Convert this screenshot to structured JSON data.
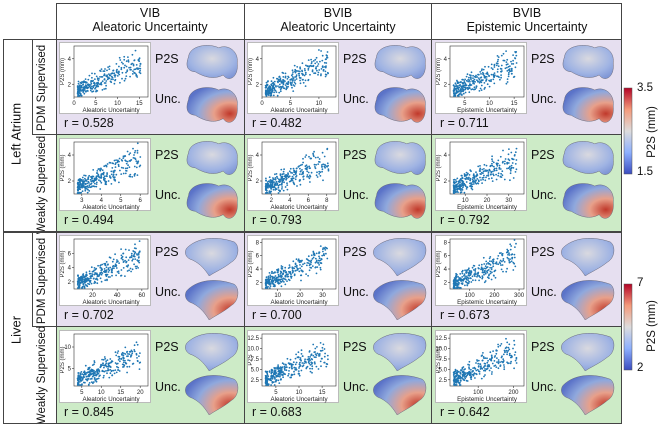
{
  "headers": [
    {
      "line1": "VIB",
      "line2": "Aleatoric Uncertainty"
    },
    {
      "line1": "BVIB",
      "line2": "Aleatoric Uncertainty"
    },
    {
      "line1": "BVIB",
      "line2": "Epistemic Uncertainty"
    }
  ],
  "groups": [
    "Left Atrium",
    "Liver"
  ],
  "rows": [
    "PDM Supervised",
    "Weakly Supervised",
    "PDM Supervised",
    "Weakly Supervised"
  ],
  "shape_labels": {
    "top": "P2S",
    "bottom": "Unc."
  },
  "colorbars": [
    {
      "max": "3.5",
      "min": "1.5",
      "unit": "P2S (mm)"
    },
    {
      "max": "7",
      "min": "2",
      "unit": "P2S (mm)"
    }
  ],
  "colors": {
    "purple_bg": "#e6dff0",
    "green_bg": "#cdebc7",
    "point": "#1f77b4"
  },
  "chart_data": [
    {
      "type": "scatter",
      "row": 0,
      "col": 0,
      "xlabel": "Aleatoric Uncertainty",
      "ylabel": "P2S (mm)",
      "xticks": [
        "0",
        "5",
        "10",
        "15"
      ],
      "yticks": [
        "2",
        "4"
      ],
      "xlim": [
        0,
        17
      ],
      "ylim": [
        1,
        5
      ],
      "r": "r = 0.528"
    },
    {
      "type": "scatter",
      "row": 0,
      "col": 1,
      "xlabel": "Aleatoric Uncertainty",
      "ylabel": "P2S (mm)",
      "xticks": [
        "0",
        "5",
        "10"
      ],
      "yticks": [
        "2",
        "4"
      ],
      "xlim": [
        0,
        13
      ],
      "ylim": [
        1,
        5
      ],
      "r": "r = 0.482"
    },
    {
      "type": "scatter",
      "row": 0,
      "col": 2,
      "xlabel": "Epistemic Uncertainty",
      "ylabel": "P2S (mm)",
      "xticks": [
        "5",
        "10",
        "15"
      ],
      "yticks": [
        "2",
        "4"
      ],
      "xlim": [
        2,
        17
      ],
      "ylim": [
        1,
        5
      ],
      "r": "r = 0.711"
    },
    {
      "type": "scatter",
      "row": 1,
      "col": 0,
      "xlabel": "Aleatoric Uncertainty",
      "ylabel": "P2S (mm)",
      "xticks": [
        "3",
        "4",
        "5",
        "6"
      ],
      "yticks": [
        "2",
        "4"
      ],
      "xlim": [
        2.6,
        6.4
      ],
      "ylim": [
        1,
        5
      ],
      "r": "r = 0.494"
    },
    {
      "type": "scatter",
      "row": 1,
      "col": 1,
      "xlabel": "Aleatoric Uncertainty",
      "ylabel": "P2S (mm)",
      "xticks": [
        "2",
        "4",
        "6",
        "8"
      ],
      "yticks": [
        "2",
        "4"
      ],
      "xlim": [
        1,
        9
      ],
      "ylim": [
        1,
        5
      ],
      "r": "r = 0.793"
    },
    {
      "type": "scatter",
      "row": 1,
      "col": 2,
      "xlabel": "Epistemic Uncertainty",
      "ylabel": "P2S (mm)",
      "xticks": [
        "10",
        "20",
        "30"
      ],
      "yticks": [
        "2",
        "4"
      ],
      "xlim": [
        3,
        37
      ],
      "ylim": [
        1,
        5
      ],
      "r": "r = 0.792"
    },
    {
      "type": "scatter",
      "row": 2,
      "col": 0,
      "xlabel": "Aleatoric Uncertainty",
      "ylabel": "P2S (mm)",
      "xticks": [
        "20",
        "40",
        "60"
      ],
      "yticks": [
        "2",
        "4",
        "6"
      ],
      "xlim": [
        5,
        65
      ],
      "ylim": [
        1,
        8
      ],
      "r": "r = 0.702"
    },
    {
      "type": "scatter",
      "row": 2,
      "col": 1,
      "xlabel": "Aleatoric Uncertainty",
      "ylabel": "P2S (mm)",
      "xticks": [
        "10",
        "20",
        "30"
      ],
      "yticks": [
        "2",
        "4",
        "6",
        "8"
      ],
      "xlim": [
        3,
        36
      ],
      "ylim": [
        1,
        8.5
      ],
      "r": "r = 0.700"
    },
    {
      "type": "scatter",
      "row": 2,
      "col": 2,
      "xlabel": "Epistemic Uncertainty",
      "ylabel": "P2S (mm)",
      "xticks": [
        "100",
        "200",
        "300"
      ],
      "yticks": [
        "2",
        "4",
        "6",
        "8"
      ],
      "xlim": [
        20,
        320
      ],
      "ylim": [
        1,
        8.5
      ],
      "r": "r = 0.673"
    },
    {
      "type": "scatter",
      "row": 3,
      "col": 0,
      "xlabel": "Aleatoric Uncertainty",
      "ylabel": "P2S (mm)",
      "xticks": [
        "5",
        "10",
        "15",
        "20"
      ],
      "yticks": [
        "5",
        "10"
      ],
      "xlim": [
        3,
        22
      ],
      "ylim": [
        1,
        13
      ],
      "r": "r = 0.845"
    },
    {
      "type": "scatter",
      "row": 3,
      "col": 1,
      "xlabel": "Aleatoric Uncertainty",
      "ylabel": "P2S",
      "xticks": [
        "5",
        "10",
        "15"
      ],
      "yticks": [
        "2.5",
        "5.0",
        "7.5",
        "10.0",
        "12.5"
      ],
      "xlim": [
        2,
        18
      ],
      "ylim": [
        1,
        13.5
      ],
      "r": "r = 0.683"
    },
    {
      "type": "scatter",
      "row": 3,
      "col": 2,
      "xlabel": "Epistemic Uncertainty",
      "ylabel": "P2S (mm)",
      "xticks": [
        "100",
        "200"
      ],
      "yticks": [
        "2.5",
        "5.0",
        "7.5",
        "10.0",
        "12.5"
      ],
      "xlim": [
        20,
        230
      ],
      "ylim": [
        1,
        13.5
      ],
      "r": "r = 0.642"
    }
  ]
}
